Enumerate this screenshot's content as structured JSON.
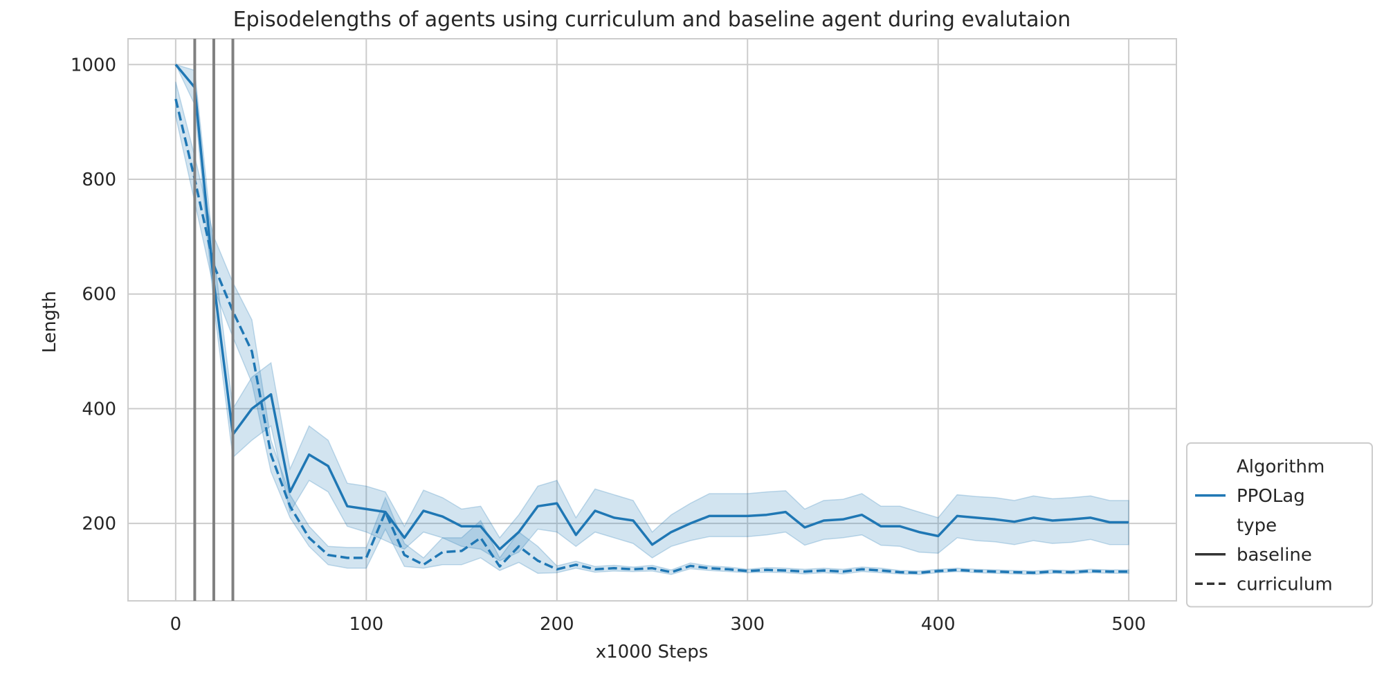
{
  "chart_data": {
    "type": "line",
    "title": "Episodelengths of agents using curriculum and baseline agent during evalutaion",
    "xlabel": "x1000 Steps",
    "ylabel": "Length",
    "xlim": [
      -25,
      525
    ],
    "ylim": [
      65,
      1045
    ],
    "x_ticks": [
      0,
      100,
      200,
      300,
      400,
      500
    ],
    "y_ticks": [
      200,
      400,
      600,
      800,
      1000
    ],
    "grid": true,
    "legend_position": "lower-right",
    "vertical_markers": [
      10,
      20,
      30
    ],
    "legend": {
      "items": [
        {
          "label": "Algorithm",
          "kind": "header"
        },
        {
          "label": "PPOLag",
          "kind": "color",
          "color": "#1f77b4"
        },
        {
          "label": "type",
          "kind": "header"
        },
        {
          "label": "baseline",
          "kind": "solid"
        },
        {
          "label": "curriculum",
          "kind": "dashed"
        }
      ]
    },
    "series": [
      {
        "name": "baseline",
        "algorithm": "PPOLag",
        "line_style": "solid",
        "color": "#1f77b4",
        "x": [
          0,
          10,
          20,
          30,
          40,
          50,
          60,
          70,
          80,
          90,
          100,
          110,
          120,
          130,
          140,
          150,
          160,
          170,
          180,
          190,
          200,
          210,
          220,
          230,
          240,
          250,
          260,
          270,
          280,
          290,
          300,
          310,
          320,
          330,
          340,
          350,
          360,
          370,
          380,
          390,
          400,
          410,
          420,
          430,
          440,
          450,
          460,
          470,
          480,
          490,
          500
        ],
        "y": [
          1000,
          960,
          620,
          355,
          400,
          425,
          255,
          320,
          300,
          230,
          225,
          220,
          175,
          222,
          212,
          195,
          195,
          155,
          185,
          230,
          235,
          180,
          222,
          210,
          205,
          163,
          185,
          200,
          213,
          213,
          213,
          215,
          220,
          193,
          205,
          207,
          215,
          195,
          195,
          185,
          178,
          213,
          210,
          207,
          203,
          210,
          205,
          207,
          210,
          202,
          202
        ],
        "ci_lower": [
          1000,
          930,
          580,
          315,
          345,
          370,
          220,
          275,
          255,
          195,
          185,
          170,
          155,
          185,
          175,
          160,
          155,
          135,
          150,
          190,
          185,
          160,
          185,
          175,
          165,
          140,
          160,
          170,
          177,
          177,
          177,
          180,
          185,
          162,
          172,
          175,
          180,
          162,
          160,
          150,
          148,
          175,
          170,
          168,
          163,
          170,
          165,
          167,
          172,
          163,
          163
        ],
        "ci_upper": [
          1000,
          990,
          670,
          400,
          455,
          480,
          295,
          370,
          345,
          270,
          265,
          255,
          195,
          258,
          245,
          225,
          230,
          175,
          215,
          265,
          275,
          210,
          260,
          250,
          240,
          185,
          215,
          235,
          252,
          252,
          252,
          255,
          257,
          225,
          240,
          242,
          252,
          230,
          230,
          220,
          210,
          250,
          247,
          245,
          240,
          248,
          243,
          245,
          248,
          240,
          240
        ]
      },
      {
        "name": "curriculum",
        "algorithm": "PPOLag",
        "line_style": "dashed",
        "color": "#1f77b4",
        "x": [
          0,
          10,
          20,
          30,
          40,
          50,
          60,
          70,
          80,
          90,
          100,
          110,
          120,
          130,
          140,
          150,
          160,
          170,
          180,
          190,
          200,
          210,
          220,
          230,
          240,
          250,
          260,
          270,
          280,
          290,
          300,
          310,
          320,
          330,
          340,
          350,
          360,
          370,
          380,
          390,
          400,
          410,
          420,
          430,
          440,
          450,
          460,
          470,
          480,
          490,
          500
        ],
        "y": [
          940,
          800,
          650,
          570,
          500,
          320,
          230,
          175,
          145,
          140,
          140,
          220,
          145,
          128,
          150,
          152,
          175,
          125,
          160,
          135,
          120,
          128,
          120,
          122,
          120,
          122,
          115,
          126,
          122,
          120,
          117,
          119,
          118,
          116,
          118,
          116,
          120,
          118,
          115,
          114,
          117,
          119,
          117,
          116,
          115,
          114,
          116,
          115,
          117,
          116,
          116
        ],
        "ci_lower": [
          910,
          760,
          610,
          525,
          445,
          290,
          210,
          160,
          128,
          122,
          122,
          190,
          125,
          122,
          128,
          128,
          140,
          118,
          132,
          113,
          114,
          122,
          115,
          117,
          116,
          117,
          111,
          121,
          118,
          116,
          114,
          115,
          114,
          112,
          114,
          112,
          116,
          114,
          112,
          111,
          114,
          116,
          114,
          113,
          112,
          111,
          113,
          112,
          114,
          113,
          113
        ],
        "ci_upper": [
          970,
          840,
          700,
          620,
          555,
          345,
          250,
          195,
          160,
          158,
          158,
          245,
          165,
          140,
          175,
          175,
          205,
          140,
          185,
          160,
          126,
          134,
          125,
          127,
          124,
          127,
          119,
          131,
          126,
          124,
          120,
          123,
          122,
          120,
          122,
          120,
          124,
          122,
          118,
          117,
          120,
          122,
          120,
          119,
          118,
          117,
          119,
          118,
          120,
          119,
          119
        ]
      }
    ]
  }
}
